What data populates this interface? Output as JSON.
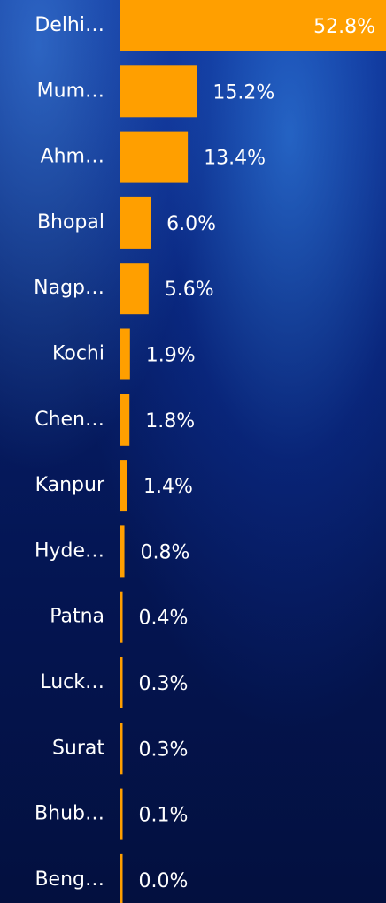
{
  "chart_data": {
    "type": "bar",
    "orientation": "horizontal",
    "color": "#ff9f00",
    "categories": [
      "Delhi…",
      "Mum…",
      "Ahm…",
      "Bhopal",
      "Nagp…",
      "Kochi",
      "Chen…",
      "Kanpur",
      "Hyde…",
      "Patna",
      "Luck…",
      "Surat",
      "Bhub…",
      "Beng…"
    ],
    "values": [
      52.8,
      15.2,
      13.4,
      6.0,
      5.6,
      1.9,
      1.8,
      1.4,
      0.8,
      0.4,
      0.3,
      0.3,
      0.1,
      0.0
    ],
    "value_labels": [
      "52.8%",
      "15.2%",
      "13.4%",
      "6.0%",
      "5.6%",
      "1.9%",
      "1.8%",
      "1.4%",
      "0.8%",
      "0.4%",
      "0.3%",
      "0.3%",
      "0.1%",
      "0.0%"
    ]
  }
}
